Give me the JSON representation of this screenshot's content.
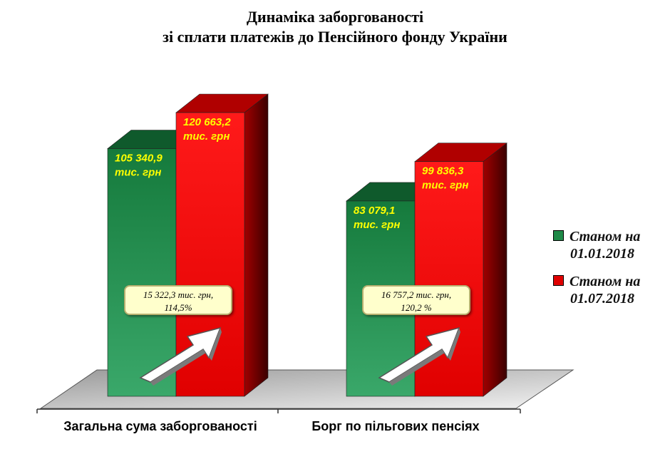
{
  "title": {
    "line1": "Динаміка заборгованості",
    "line2": "зі сплати платежів до Пенсійного фонду України"
  },
  "chart_data": {
    "type": "bar",
    "title": "Динаміка заборгованості зі сплати платежів до Пенсійного фонду України",
    "categories": [
      "Загальна сума заборгованості",
      "Борг по пільгових пенсіях"
    ],
    "series": [
      {
        "name": "Станом на 01.01.2018",
        "color": "#1f8a48",
        "values": [
          105340.9,
          83079.1
        ],
        "labels": [
          [
            "105 340,9",
            "тис. грн"
          ],
          [
            "83 079,1",
            "тис. грн"
          ]
        ]
      },
      {
        "name": "Станом на 01.07.2018",
        "color": "#e00000",
        "values": [
          120663.2,
          99836.3
        ],
        "labels": [
          [
            "120 663,2",
            "тис. грн"
          ],
          [
            "99 836,3",
            "тис. грн"
          ]
        ]
      }
    ],
    "changes": [
      {
        "line1": "15 322,3 тис. грн,",
        "line2": "114,5%"
      },
      {
        "line1": "16 757,2 тис. грн,",
        "line2": "120,2 %"
      }
    ],
    "legend_position": "right",
    "grid": false,
    "three_d": true
  },
  "legend": [
    {
      "line1": "Станом на",
      "line2": "01.01.2018",
      "color": "#1f8a48"
    },
    {
      "line1": "Станом на",
      "line2": "01.07.2018",
      "color": "#e00000"
    }
  ]
}
